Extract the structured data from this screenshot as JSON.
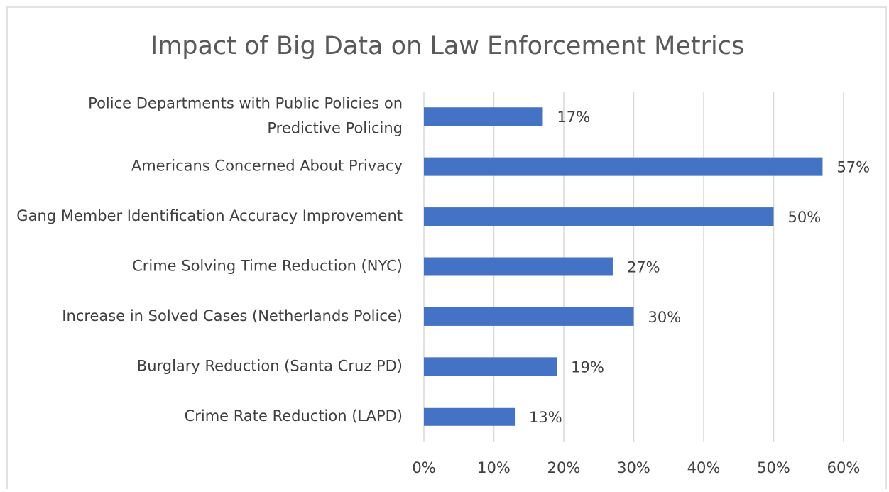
{
  "chart_data": {
    "type": "barh",
    "title": "Impact of Big Data on Law Enforcement Metrics",
    "categories": [
      "Police Departments with Public Policies on Predictive Policing",
      "Americans Concerned About Privacy",
      "Gang Member Identification Accuracy Improvement",
      "Crime Solving Time Reduction (NYC)",
      "Increase in Solved Cases (Netherlands Police)",
      "Burglary Reduction (Santa Cruz PD)",
      "Crime Rate Reduction (LAPD)"
    ],
    "values": [
      17,
      57,
      50,
      27,
      30,
      19,
      13
    ],
    "value_labels": [
      "17%",
      "57%",
      "50%",
      "27%",
      "30%",
      "19%",
      "13%"
    ],
    "color": "#4472c4",
    "xlim": [
      0,
      60
    ],
    "xticks": [
      {
        "value": 0,
        "label": "0%"
      },
      {
        "value": 10,
        "label": "10%"
      },
      {
        "value": 20,
        "label": "20%"
      },
      {
        "value": 30,
        "label": "30%"
      },
      {
        "value": 40,
        "label": "40%"
      },
      {
        "value": 50,
        "label": "50%"
      },
      {
        "value": 60,
        "label": "60%"
      }
    ],
    "grid": true
  }
}
